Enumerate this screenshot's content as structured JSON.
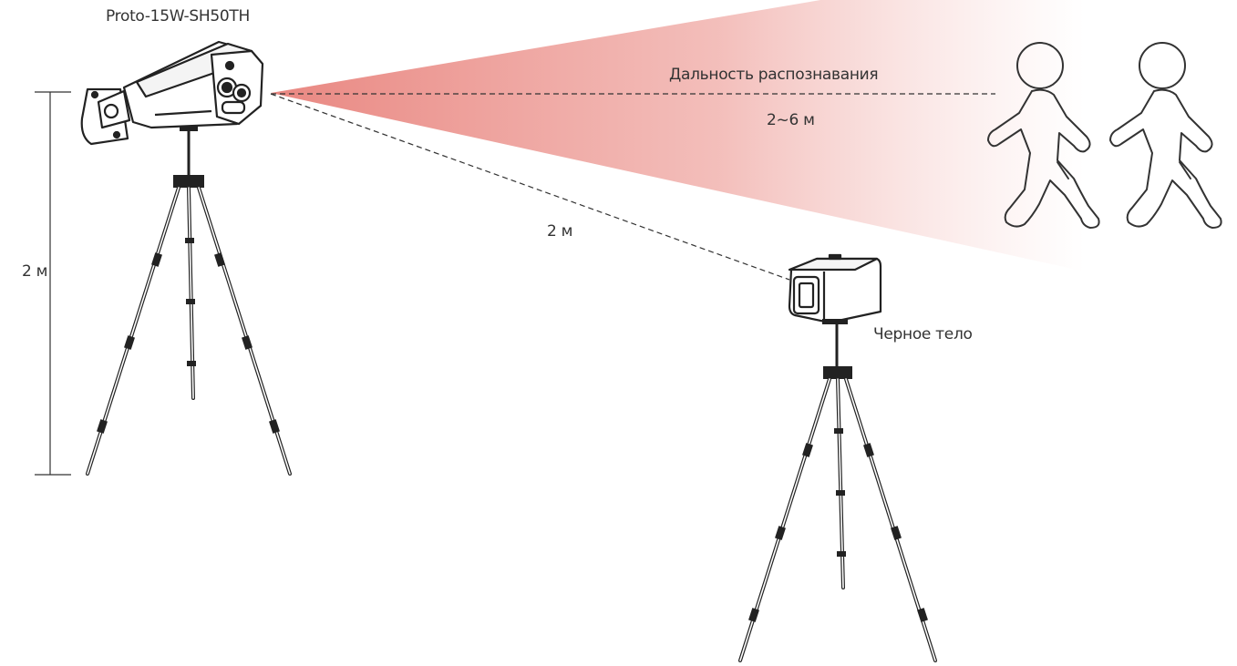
{
  "labels": {
    "camera_model": "Proto-15W-SH50TH",
    "camera_height": "2 м",
    "recognition_range_title": "Дальность распознавания",
    "recognition_range_value": "2~6 м",
    "blackbody_distance": "2 м",
    "blackbody": "Черное тело"
  },
  "icons": {
    "camera": "thermal-bullet-camera-icon",
    "blackbody_device": "blackbody-calibrator-icon",
    "tripod": "tripod-icon",
    "person": "walking-person-icon"
  },
  "colors": {
    "beam_start": "#e98781",
    "beam_end": "#ffffff",
    "line": "#333333",
    "text": "#333333"
  }
}
